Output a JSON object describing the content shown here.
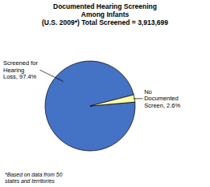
{
  "chart_data": {
    "type": "pie",
    "title": "Documented Hearing Screening\nAmong Infants\n(U.S. 2009*) Total Screened = 3,913,699",
    "values": [
      97.4,
      2.6
    ],
    "value_labels": [
      "Screened for\nHearing\nLoss, 97.4%",
      "No\nDocumented\nScreen, 2.6%"
    ],
    "colors": [
      "#4472C4",
      "#FFFFAA"
    ],
    "data_labels": true,
    "annotations": [
      "*Based on data from 50\nstates and territories"
    ]
  }
}
